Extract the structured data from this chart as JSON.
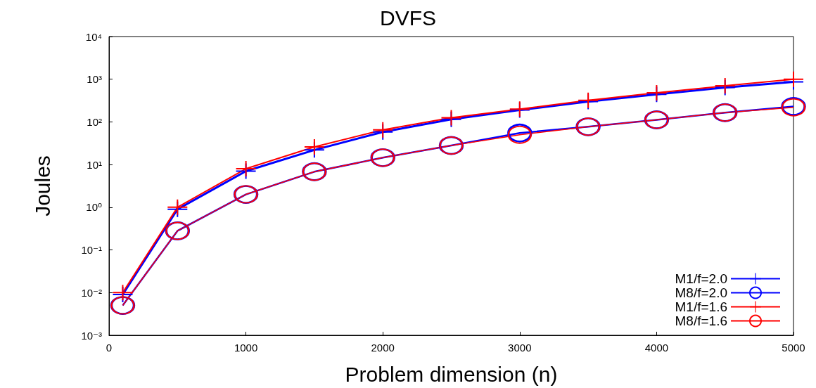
{
  "chart_data": {
    "type": "line",
    "title": "DVFS",
    "xlabel": "Problem dimension (n)",
    "ylabel": "Joules",
    "x": [
      100,
      500,
      1000,
      1500,
      2000,
      2500,
      3000,
      3500,
      4000,
      4500,
      5000
    ],
    "series": [
      {
        "name": "M1/f=2.0",
        "color": "#0000ff",
        "marker": "cross",
        "values": [
          0.009,
          0.9,
          7,
          22,
          58,
          115,
          190,
          300,
          440,
          640,
          870
        ]
      },
      {
        "name": "M8/f=2.0",
        "color": "#0000ff",
        "marker": "circle",
        "values": [
          0.005,
          0.28,
          2.0,
          6.8,
          14.5,
          28,
          55,
          77,
          112,
          165,
          230
        ]
      },
      {
        "name": "M1/f=1.6",
        "color": "#ff0000",
        "marker": "cross",
        "values": [
          0.01,
          1.0,
          8,
          26,
          65,
          125,
          200,
          320,
          480,
          700,
          1000
        ]
      },
      {
        "name": "M8/f=1.6",
        "color": "#ff0000",
        "marker": "circle",
        "values": [
          0.005,
          0.28,
          2.0,
          6.8,
          14.5,
          28,
          50,
          77,
          112,
          165,
          220
        ]
      }
    ],
    "log": "y",
    "xlim": [
      0,
      5000
    ],
    "xticks": [
      0,
      1000,
      2000,
      3000,
      4000,
      5000
    ],
    "ylim": [
      0.001,
      10000
    ],
    "yticks": [
      {
        "value": 0.001,
        "label": "10⁻³"
      },
      {
        "value": 0.01,
        "label": "10⁻²"
      },
      {
        "value": 0.1,
        "label": "10⁻¹"
      },
      {
        "value": 1,
        "label": "10⁰"
      },
      {
        "value": 10,
        "label": "10¹"
      },
      {
        "value": 100,
        "label": "10²"
      },
      {
        "value": 1000,
        "label": "10³"
      },
      {
        "value": 10000,
        "label": "10⁴"
      }
    ],
    "grid": false,
    "legend": "bottom right",
    "line_style": "solid"
  }
}
